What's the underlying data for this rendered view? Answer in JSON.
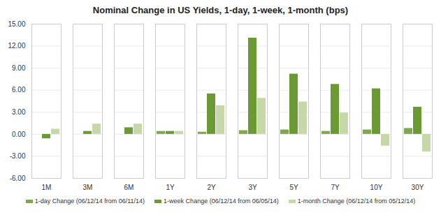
{
  "chart_data": {
    "type": "bar",
    "title": "Nominal Change in US Yields, 1-day, 1-week, 1-month (bps)",
    "categories": [
      "1M",
      "3M",
      "6M",
      "1Y",
      "2Y",
      "3Y",
      "5Y",
      "7Y",
      "10Y",
      "30Y"
    ],
    "series": [
      {
        "name": "1-day Change (06/12/14 from 06/11/14)",
        "color": "#7fa84a",
        "values": [
          0,
          0,
          0,
          0.4,
          0.3,
          0.5,
          0.6,
          0.4,
          0.6,
          0.8
        ]
      },
      {
        "name": "1-week Change (06/12/14 from 06/05/14)",
        "color": "#6b9a35",
        "values": [
          -0.6,
          0.4,
          0.9,
          0.4,
          5.5,
          13.1,
          8.2,
          6.8,
          6.2,
          3.7
        ]
      },
      {
        "name": "1-month Change (06/12/14 from 05/12/14)",
        "color": "#c6d7a8",
        "values": [
          0.7,
          1.4,
          1.4,
          0.4,
          3.9,
          4.9,
          4.4,
          2.9,
          -1.6,
          -2.4
        ]
      }
    ],
    "ylim": [
      -6,
      15
    ],
    "yticks": [
      {
        "value": -6,
        "label": "-6.00"
      },
      {
        "value": -3,
        "label": "-3.00"
      },
      {
        "value": 0,
        "label": "0.00"
      },
      {
        "value": 3,
        "label": "3.00"
      },
      {
        "value": 6,
        "label": "6.00"
      },
      {
        "value": 9,
        "label": "9.00"
      },
      {
        "value": 12,
        "label": "12.00"
      },
      {
        "value": 15,
        "label": "15.00"
      }
    ],
    "grid": true,
    "legend": "bottom"
  }
}
